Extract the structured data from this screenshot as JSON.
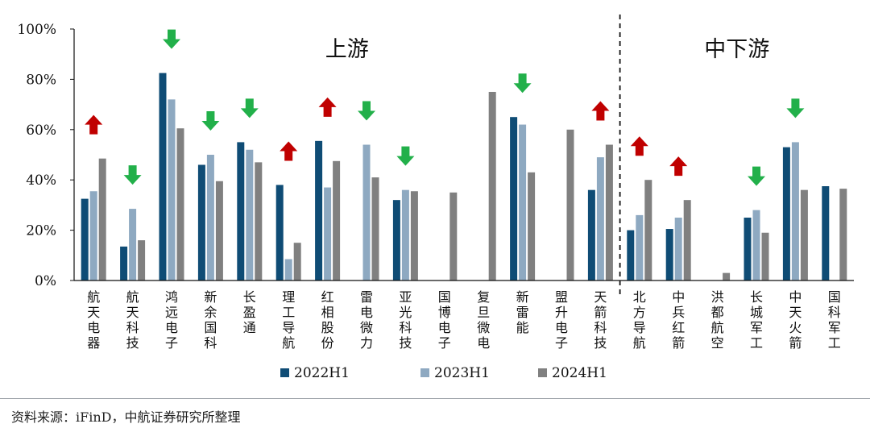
{
  "chart_data": {
    "type": "bar",
    "ylim": [
      0,
      100
    ],
    "yticks": [
      "0%",
      "20%",
      "40%",
      "60%",
      "80%",
      "100%"
    ],
    "ytick_values": [
      0,
      20,
      40,
      60,
      80,
      100
    ],
    "categories": [
      "航天电器",
      "航天科技",
      "鸿远电子",
      "新余国科",
      "长盈通",
      "理工导航",
      "红相股份",
      "雷电微力",
      "亚光科技",
      "国博电子",
      "复旦微电",
      "新雷能",
      "盟升电子",
      "天箭科技",
      "北方导航",
      "中兵红箭",
      "洪都航空",
      "长城军工",
      "中天火箭",
      "国科军工"
    ],
    "series": [
      {
        "name": "2022H1",
        "color": "#0f4c75",
        "values": [
          32.5,
          13.5,
          82.5,
          46,
          55,
          38,
          55.5,
          null,
          32,
          null,
          null,
          65,
          null,
          36,
          20,
          20.5,
          null,
          25,
          53,
          37.5
        ]
      },
      {
        "name": "2023H1",
        "color": "#8ea9c1",
        "values": [
          35.5,
          28.5,
          72,
          50,
          52,
          8.5,
          37,
          54,
          36,
          null,
          null,
          62,
          null,
          49,
          26,
          25,
          null,
          28,
          55,
          null
        ]
      },
      {
        "name": "2024H1",
        "color": "#808080",
        "values": [
          48.5,
          16,
          60.5,
          39.5,
          47,
          15,
          47.5,
          41,
          35.5,
          35,
          75,
          43,
          60,
          54,
          40,
          32,
          3,
          19,
          36,
          36.5
        ]
      }
    ],
    "trend_arrows": [
      "up",
      "down",
      "down",
      "down",
      "down",
      "up",
      "up",
      "down",
      "down",
      null,
      null,
      "down",
      null,
      "up",
      "up",
      "up",
      null,
      "down",
      "down",
      null
    ],
    "arrow_colors": {
      "up": "#c00000",
      "down": "#22b04a"
    },
    "divider_after_index": 13,
    "regions": [
      {
        "label": "上游",
        "from": 0,
        "to": 13
      },
      {
        "label": "中下游",
        "from": 14,
        "to": 19
      }
    ],
    "legend_position": "bottom",
    "grid": false
  },
  "source": "资料来源：iFinD，中航证券研究所整理"
}
